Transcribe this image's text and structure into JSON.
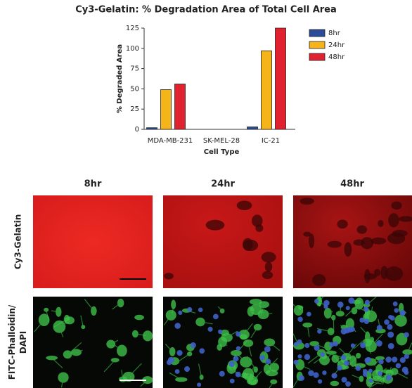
{
  "chart_data": {
    "type": "bar",
    "title": "Cy3-Gelatin: % Degradation Area of Total Cell Area",
    "xlabel": "Cell Type",
    "ylabel": "% Degraded Area",
    "categories": [
      "MDA-MB-231",
      "SK-MEL-28",
      "IC-21"
    ],
    "series": [
      {
        "name": "8hr",
        "color": "#2a4a9a",
        "values": [
          2,
          0,
          3
        ]
      },
      {
        "name": "24hr",
        "color": "#f4b41a",
        "values": [
          49,
          0,
          97
        ]
      },
      {
        "name": "48hr",
        "color": "#e02230",
        "values": [
          56,
          0,
          125
        ]
      }
    ],
    "ylim": [
      0,
      125
    ],
    "yticks": [
      0,
      25,
      50,
      75,
      100,
      125
    ],
    "legend": "right"
  },
  "panels": {
    "columns": [
      "8hr",
      "24hr",
      "48hr"
    ],
    "rows": [
      "Cy3-Gelatin",
      "FITC-Phalloidin/ DAPI"
    ]
  }
}
